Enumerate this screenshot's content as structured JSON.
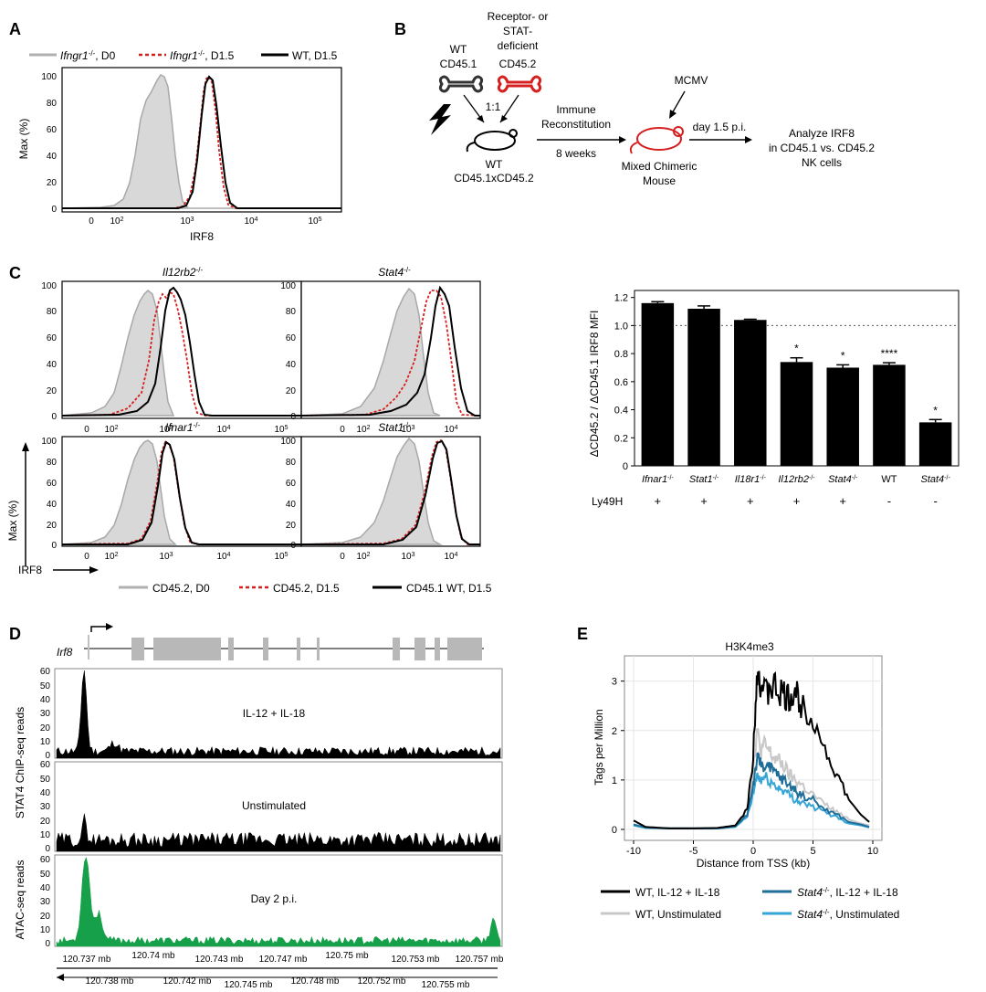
{
  "panels": {
    "a": "A",
    "b": "B",
    "c": "C",
    "d": "D",
    "e": "E"
  },
  "panelA": {
    "legend": [
      {
        "label": "Ifngr1",
        "sup": "-/-",
        "tail": ", D0"
      },
      {
        "label": "Ifngr1",
        "sup": "-/-",
        "tail": ", D1.5"
      },
      {
        "label": "WT, D1.5",
        "sup": "",
        "tail": ""
      }
    ],
    "ylabel": "Max (%)",
    "xlabel": "IRF8",
    "yticks": [
      "0",
      "20",
      "40",
      "60",
      "80",
      "100"
    ],
    "xticks": [
      "0",
      "10",
      "10",
      "10",
      "10"
    ],
    "xexp": [
      "",
      "2",
      "3",
      "4",
      "5"
    ]
  },
  "panelB": {
    "wt_label": "WT",
    "wt_cd": "CD45.1",
    "def_label1": "Receptor- or",
    "def_label2": "STAT-",
    "def_label3": "deficient",
    "def_cd": "CD45.2",
    "ratio": "1:1",
    "recipient1": "WT",
    "recipient2": "CD45.1xCD45.2",
    "arrow1_top1": "Immune",
    "arrow1_top2": "Reconstitution",
    "arrow1_bottom": "8 weeks",
    "virus": "MCMV",
    "chimera1": "Mixed Chimeric",
    "chimera2": "Mouse",
    "arrow2": "day 1.5 p.i.",
    "analyze1": "Analyze IRF8",
    "analyze2": "in CD45.1 vs. CD45.2",
    "analyze3": "NK cells"
  },
  "panelC": {
    "hist_titles": [
      {
        "gene": "Il12rb2",
        "sup": "-/-"
      },
      {
        "gene": "Stat4",
        "sup": "-/-"
      },
      {
        "gene": "Ifnar1",
        "sup": "-/-"
      },
      {
        "gene": "Stat1",
        "sup": "-/-"
      }
    ],
    "ylabel": "Max (%)",
    "xlabel": "IRF8",
    "legend": [
      "CD45.2, D0",
      "CD45.2, D1.5",
      "CD45.1 WT, D1.5"
    ],
    "bar_ylabel": "ΔCD45.2 / ΔCD45.1 IRF8 MFI",
    "bar_yticks": [
      "0",
      "0.2",
      "0.4",
      "0.6",
      "0.8",
      "1.0",
      "1.2"
    ],
    "row_label": "Ly49H",
    "ly49h": [
      "+",
      "+",
      "+",
      "+",
      "+",
      "-",
      "-"
    ]
  },
  "chart_data": [
    {
      "type": "bar",
      "categories": [
        "Ifnar1-/-",
        "Stat1-/-",
        "Il18r1-/-",
        "Il12rb2-/-",
        "Stat4-/-",
        "WT",
        "Stat4-/-"
      ],
      "values": [
        1.16,
        1.12,
        1.04,
        0.74,
        0.7,
        0.72,
        0.31
      ],
      "errors": [
        0.01,
        0.02,
        0.005,
        0.03,
        0.02,
        0.015,
        0.02
      ],
      "significance": [
        "",
        "",
        "",
        "*",
        "*",
        "****",
        "*"
      ],
      "ylabel": "ΔCD45.2 / ΔCD45.1 IRF8 MFI",
      "ylim": [
        0,
        1.25
      ],
      "reference_line": 1.0
    },
    {
      "type": "line",
      "title": "H3K4me3",
      "xlabel": "Distance from TSS (kb)",
      "ylabel": "Tags per Million",
      "xlim": [
        -10,
        10
      ],
      "ylim": [
        0,
        3.4
      ],
      "xticks": [
        "-10",
        "-5",
        "0",
        "5",
        "10"
      ],
      "yticks": [
        "0",
        "1",
        "2",
        "3"
      ],
      "series": [
        {
          "name": "WT, IL-12 + IL-18",
          "color": "#000000",
          "x": [
            -10,
            -9,
            -7,
            -5,
            -3,
            -1.5,
            -0.5,
            0,
            0.3,
            0.6,
            1,
            1.5,
            2,
            2.5,
            3,
            3.5,
            4,
            5,
            6,
            7,
            8,
            9,
            9.7
          ],
          "y": [
            0.18,
            0.05,
            0.02,
            0.02,
            0.03,
            0.08,
            0.4,
            1.5,
            3.3,
            3.0,
            2.7,
            2.9,
            2.8,
            2.7,
            2.6,
            2.8,
            2.5,
            2.3,
            1.6,
            1.1,
            0.6,
            0.3,
            0.15
          ]
        },
        {
          "name": "WT, Unstimulated",
          "color": "#c8c8c8",
          "x": [
            -10,
            -9,
            -7,
            -5,
            -3,
            -1.5,
            -0.5,
            0,
            0.3,
            0.6,
            1,
            1.5,
            2,
            2.5,
            3,
            3.5,
            4,
            5,
            6,
            7,
            8,
            9,
            9.7
          ],
          "y": [
            0.1,
            0.04,
            0.02,
            0.02,
            0.02,
            0.06,
            0.3,
            1.2,
            2.0,
            1.6,
            1.7,
            1.5,
            1.4,
            1.3,
            1.1,
            1.0,
            0.9,
            0.7,
            0.5,
            0.35,
            0.2,
            0.12,
            0.08
          ]
        },
        {
          "name": "Stat4-/-, IL-12 + IL-18",
          "color": "#1f6e9a",
          "x": [
            -10,
            -9,
            -7,
            -5,
            -3,
            -1.5,
            -0.5,
            0,
            0.3,
            0.6,
            1,
            1.5,
            2,
            2.5,
            3,
            3.5,
            4,
            5,
            6,
            7,
            8,
            9,
            9.7
          ],
          "y": [
            0.1,
            0.04,
            0.02,
            0.02,
            0.02,
            0.06,
            0.3,
            0.9,
            1.4,
            1.35,
            1.3,
            1.2,
            1.1,
            1.0,
            0.9,
            0.8,
            0.7,
            0.6,
            0.4,
            0.3,
            0.15,
            0.1,
            0.05
          ]
        },
        {
          "name": "Stat4-/-, Unstimulated",
          "color": "#35a5d6",
          "x": [
            -10,
            -9,
            -7,
            -5,
            -3,
            -1.5,
            -0.5,
            0,
            0.3,
            0.6,
            1,
            1.5,
            2,
            2.5,
            3,
            3.5,
            4,
            5,
            6,
            7,
            8,
            9,
            9.7
          ],
          "y": [
            0.08,
            0.03,
            0.02,
            0.02,
            0.02,
            0.05,
            0.25,
            0.7,
            1.1,
            1.0,
            1.05,
            0.95,
            0.85,
            0.8,
            0.7,
            0.6,
            0.55,
            0.45,
            0.35,
            0.25,
            0.12,
            0.08,
            0.04
          ]
        }
      ]
    }
  ],
  "panelD": {
    "gene": "Irf8",
    "track1": "IL-12 + IL-18",
    "track2": "Unstimulated",
    "track3": "Day 2 p.i.",
    "ylabel1": "STAT4 ChIP-seq reads",
    "ylabel2": "ATAC-seq reads",
    "yticks": [
      "0",
      "10",
      "20",
      "30",
      "40",
      "50",
      "60"
    ],
    "coords_top": [
      "120.737 mb",
      "120.74 mb",
      "120.743 mb",
      "120.747 mb",
      "120.75 mb",
      "120.753 mb",
      "120.757 mb"
    ],
    "coords_bottom": [
      "120.738 mb",
      "120.742 mb",
      "120.745 mb",
      "120.748 mb",
      "120.752 mb",
      "120.755 mb"
    ]
  },
  "panelE": {
    "title": "H3K4me3",
    "legend": [
      {
        "pre": "WT, IL-12 + IL-18",
        "gene": "",
        "sup": ""
      },
      {
        "pre": "",
        "gene": "Stat4",
        "sup": "-/-",
        "tail": ", IL-12 + IL-18"
      },
      {
        "pre": "WT, Unstimulated",
        "gene": "",
        "sup": ""
      },
      {
        "pre": "",
        "gene": "Stat4",
        "sup": "-/-",
        "tail": ", Unstimulated"
      }
    ]
  }
}
